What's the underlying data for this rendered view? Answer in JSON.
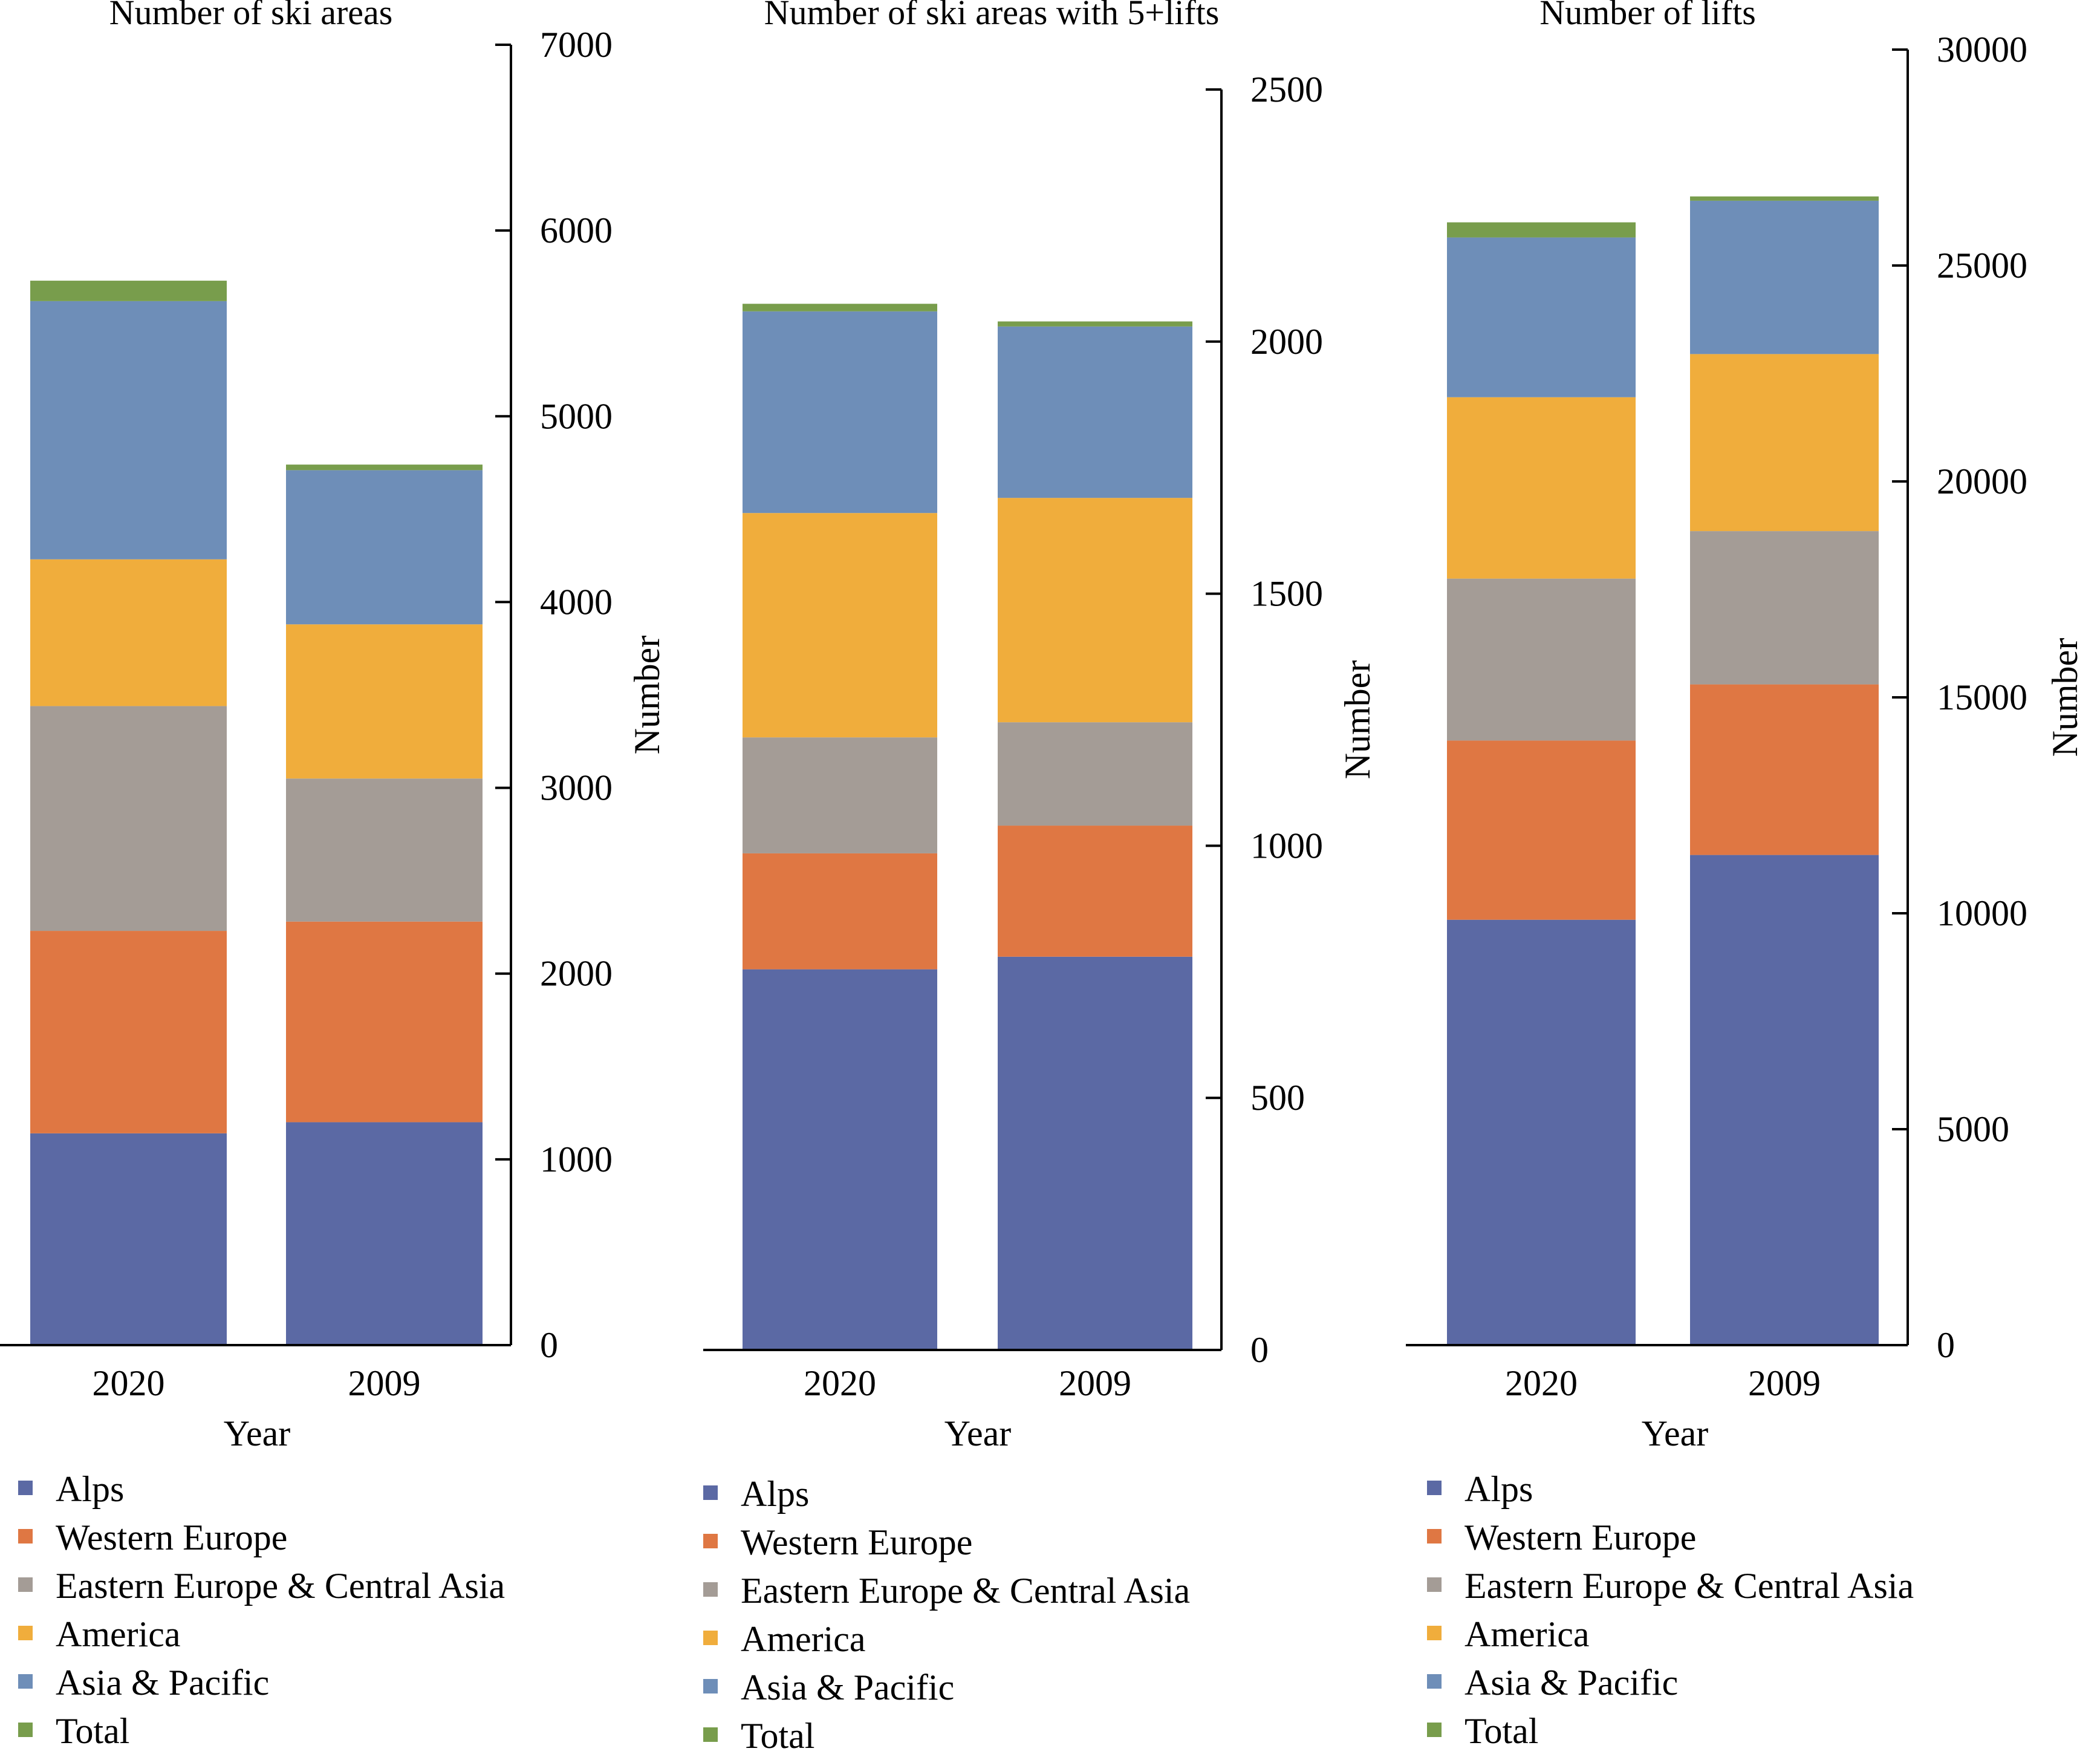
{
  "x_label": "Year",
  "y_label": "Number",
  "legend": [
    {
      "label": "Alps",
      "color": "#5b69a4"
    },
    {
      "label": "Western Europe",
      "color": "#df7743"
    },
    {
      "label": "Eastern Europe & Central Asia",
      "color": "#a49c96"
    },
    {
      "label": "America",
      "color": "#f0ad3c"
    },
    {
      "label": "Asia & Pacific",
      "color": "#6e8eb8"
    },
    {
      "label": "Total",
      "color": "#789d4c"
    }
  ],
  "chart_data": [
    {
      "type": "bar",
      "stacked": true,
      "title": "Number of ski areas",
      "xlabel": "Year",
      "ylabel": "Number",
      "categories": [
        "2020",
        "2009"
      ],
      "ylim": [
        0,
        7000
      ],
      "yticks": [
        0,
        1000,
        2000,
        3000,
        4000,
        5000,
        6000,
        7000
      ],
      "series": [
        {
          "name": "Alps",
          "values": [
            1140,
            1200
          ]
        },
        {
          "name": "Western Europe",
          "values": [
            1090,
            1080
          ]
        },
        {
          "name": "Eastern Europe & Central Asia",
          "values": [
            1210,
            770
          ]
        },
        {
          "name": "America",
          "values": [
            790,
            830
          ]
        },
        {
          "name": "Asia & Pacific",
          "values": [
            1390,
            830
          ]
        },
        {
          "name": "Total",
          "values": [
            110,
            30
          ]
        }
      ]
    },
    {
      "type": "bar",
      "stacked": true,
      "title": "Number of ski areas with 5+lifts",
      "xlabel": "Year",
      "ylabel": "Number",
      "categories": [
        "2020",
        "2009"
      ],
      "ylim": [
        0,
        2500
      ],
      "yticks": [
        0,
        500,
        1000,
        1500,
        2000,
        2500
      ],
      "series": [
        {
          "name": "Alps",
          "values": [
            755,
            780
          ]
        },
        {
          "name": "Western Europe",
          "values": [
            230,
            260
          ]
        },
        {
          "name": "Eastern Europe & Central Asia",
          "values": [
            230,
            205
          ]
        },
        {
          "name": "America",
          "values": [
            445,
            445
          ]
        },
        {
          "name": "Asia & Pacific",
          "values": [
            400,
            340
          ]
        },
        {
          "name": "Total",
          "values": [
            15,
            10
          ]
        }
      ]
    },
    {
      "type": "bar",
      "stacked": true,
      "title": "Number of lifts",
      "xlabel": "Year",
      "ylabel": "Number",
      "categories": [
        "2020",
        "2009"
      ],
      "ylim": [
        0,
        30000
      ],
      "yticks": [
        0,
        5000,
        10000,
        15000,
        20000,
        25000,
        30000
      ],
      "series": [
        {
          "name": "Alps",
          "values": [
            9850,
            11350
          ]
        },
        {
          "name": "Western Europe",
          "values": [
            4150,
            3950
          ]
        },
        {
          "name": "Eastern Europe & Central Asia",
          "values": [
            3750,
            3550
          ]
        },
        {
          "name": "America",
          "values": [
            4200,
            4100
          ]
        },
        {
          "name": "Asia & Pacific",
          "values": [
            3700,
            3550
          ]
        },
        {
          "name": "Total",
          "values": [
            350,
            100
          ]
        }
      ]
    }
  ]
}
